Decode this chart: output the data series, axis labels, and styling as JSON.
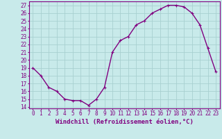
{
  "x": [
    0,
    1,
    2,
    3,
    4,
    5,
    6,
    7,
    8,
    9,
    10,
    11,
    12,
    13,
    14,
    15,
    16,
    17,
    18,
    19,
    20,
    21,
    22,
    23
  ],
  "y": [
    19,
    18,
    16.5,
    16,
    15,
    14.8,
    14.8,
    14.2,
    15,
    16.5,
    21,
    22.5,
    23,
    24.5,
    25,
    26,
    26.5,
    27,
    27,
    26.8,
    26,
    24.5,
    21.5,
    18.5
  ],
  "line_color": "#800080",
  "marker": "+",
  "bg_color": "#c8eaea",
  "grid_color": "#a8d0d0",
  "axis_color": "#800080",
  "xlabel": "Windchill (Refroidissement éolien,°C)",
  "ylim": [
    13.8,
    27.5
  ],
  "xlim": [
    -0.5,
    23.5
  ],
  "yticks": [
    14,
    15,
    16,
    17,
    18,
    19,
    20,
    21,
    22,
    23,
    24,
    25,
    26,
    27
  ],
  "xticks": [
    0,
    1,
    2,
    3,
    4,
    5,
    6,
    7,
    8,
    9,
    10,
    11,
    12,
    13,
    14,
    15,
    16,
    17,
    18,
    19,
    20,
    21,
    22,
    23
  ],
  "tick_fontsize": 5.5,
  "xlabel_fontsize": 6.5,
  "line_width": 1.0,
  "marker_size": 3.5
}
